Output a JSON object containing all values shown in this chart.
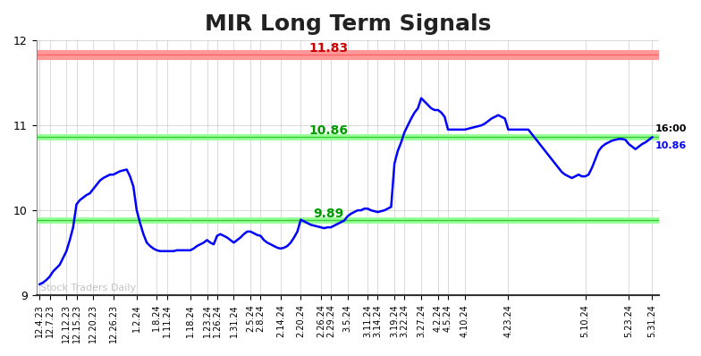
{
  "title": "MIR Long Term Signals",
  "title_fontsize": 18,
  "background_color": "#ffffff",
  "grid_color": "#cccccc",
  "line_color": "#0000ff",
  "line_width": 1.8,
  "ylim": [
    9.0,
    12.0
  ],
  "yticks": [
    9,
    10,
    11,
    12
  ],
  "hline_red": 11.83,
  "hline_green_upper": 10.86,
  "hline_green_lower": 9.89,
  "hline_red_color": "#ff9999",
  "hline_green_color": "#99ff99",
  "hline_red_label_color": "#cc0000",
  "hline_green_label_color": "#009900",
  "annotation_16_00": "16:00",
  "annotation_price": "10.86",
  "watermark": "Stock Traders Daily",
  "xtick_labels": [
    "12.4.23",
    "12.7.23",
    "12.12.23",
    "12.15.23",
    "12.20.23",
    "12.26.23",
    "1.2.24",
    "1.8.24",
    "1.11.24",
    "1.18.24",
    "1.23.24",
    "1.26.24",
    "1.31.24",
    "2.5.24",
    "2.8.24",
    "2.14.24",
    "2.20.24",
    "2.26.24",
    "2.29.24",
    "3.5.24",
    "3.11.24",
    "3.14.24",
    "3.19.24",
    "3.22.24",
    "3.27.24",
    "4.2.24",
    "4.5.24",
    "4.10.24",
    "4.23.24",
    "5.10.24",
    "5.23.24",
    "5.31.24"
  ],
  "x_values": [
    0,
    3,
    8,
    11,
    16,
    22,
    29,
    35,
    38,
    45,
    50,
    53,
    58,
    63,
    66,
    72,
    78,
    84,
    87,
    92,
    98,
    101,
    106,
    109,
    114,
    119,
    122,
    127,
    140,
    163,
    176,
    183
  ],
  "dense_x": [
    0,
    1,
    2,
    3,
    4,
    5,
    6,
    7,
    8,
    9,
    10,
    11,
    12,
    13,
    14,
    15,
    16,
    17,
    18,
    19,
    20,
    21,
    22,
    23,
    24,
    25,
    26,
    27,
    28,
    29,
    30,
    31,
    32,
    33,
    34,
    35,
    36,
    37,
    38,
    39,
    40,
    41,
    42,
    43,
    44,
    45,
    46,
    47,
    48,
    49,
    50,
    51,
    52,
    53,
    54,
    55,
    56,
    57,
    58,
    59,
    60,
    61,
    62,
    63,
    64,
    65,
    66,
    67,
    68,
    69,
    70,
    71,
    72,
    73,
    74,
    75,
    76,
    77,
    78,
    79,
    80,
    81,
    82,
    83,
    84,
    85,
    86,
    87,
    88,
    89,
    90,
    91,
    92,
    93,
    94,
    95,
    96,
    97,
    98,
    99,
    100,
    101,
    102,
    103,
    104,
    105,
    106,
    107,
    108,
    109,
    110,
    111,
    112,
    113,
    114,
    115,
    116,
    117,
    118,
    119,
    120,
    121,
    122,
    123,
    124,
    125,
    126,
    127,
    128,
    129,
    130,
    131,
    132,
    133,
    134,
    135,
    136,
    137,
    138,
    139,
    140,
    141,
    142,
    143,
    144,
    145,
    146,
    147,
    148,
    149,
    150,
    151,
    152,
    153,
    154,
    155,
    156,
    157,
    158,
    159,
    160,
    161,
    162,
    163,
    164,
    165,
    166,
    167,
    168,
    169,
    170,
    171,
    172,
    173,
    174,
    175,
    176,
    177,
    178,
    179,
    180,
    181,
    182,
    183
  ],
  "dense_y": [
    9.13,
    9.15,
    9.18,
    9.22,
    9.28,
    9.32,
    9.36,
    9.44,
    9.52,
    9.65,
    9.8,
    10.07,
    10.12,
    10.15,
    10.18,
    10.2,
    10.25,
    10.3,
    10.35,
    10.38,
    10.4,
    10.42,
    10.42,
    10.44,
    10.46,
    10.47,
    10.48,
    10.4,
    10.28,
    10.0,
    9.85,
    9.72,
    9.62,
    9.58,
    9.55,
    9.53,
    9.52,
    9.52,
    9.52,
    9.52,
    9.52,
    9.53,
    9.53,
    9.53,
    9.53,
    9.53,
    9.55,
    9.58,
    9.6,
    9.62,
    9.65,
    9.62,
    9.6,
    9.7,
    9.72,
    9.7,
    9.68,
    9.65,
    9.62,
    9.65,
    9.68,
    9.72,
    9.75,
    9.75,
    9.73,
    9.71,
    9.7,
    9.65,
    9.62,
    9.6,
    9.58,
    9.56,
    9.55,
    9.56,
    9.58,
    9.62,
    9.68,
    9.75,
    9.89,
    9.87,
    9.85,
    9.83,
    9.82,
    9.81,
    9.8,
    9.79,
    9.8,
    9.8,
    9.82,
    9.84,
    9.86,
    9.88,
    9.93,
    9.96,
    9.98,
    10.0,
    10.0,
    10.02,
    10.02,
    10.0,
    9.99,
    9.98,
    9.99,
    10.0,
    10.02,
    10.04,
    10.55,
    10.7,
    10.8,
    10.92,
    11.0,
    11.08,
    11.15,
    11.2,
    11.32,
    11.28,
    11.24,
    11.2,
    11.18,
    11.18,
    11.15,
    11.1,
    10.95,
    10.95,
    10.95,
    10.95,
    10.95,
    10.95,
    10.96,
    10.97,
    10.98,
    10.99,
    11.0,
    11.02,
    11.05,
    11.08,
    11.1,
    11.12,
    11.1,
    11.08,
    10.95,
    10.95,
    10.95,
    10.95,
    10.95,
    10.95,
    10.95,
    10.9,
    10.85,
    10.8,
    10.75,
    10.7,
    10.65,
    10.6,
    10.55,
    10.5,
    10.45,
    10.42,
    10.4,
    10.38,
    10.4,
    10.42,
    10.4,
    10.4,
    10.42,
    10.5,
    10.6,
    10.7,
    10.75,
    10.78,
    10.8,
    10.82,
    10.83,
    10.84,
    10.84,
    10.83,
    10.78,
    10.75,
    10.72,
    10.75,
    10.78,
    10.8,
    10.83,
    10.86
  ]
}
